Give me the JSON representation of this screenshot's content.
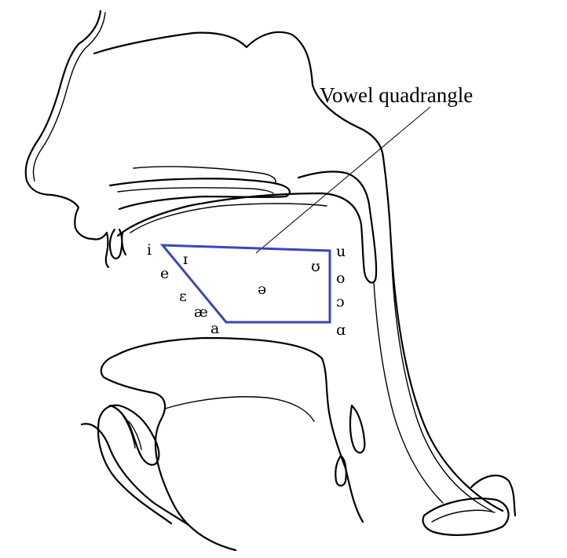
{
  "diagram": {
    "title": "Vowel quadrangle",
    "quadrangle_color": "#3a47b8",
    "vowels": {
      "i": "i",
      "small_i": "ɪ",
      "e": "e",
      "epsilon": "ɛ",
      "ae": "æ",
      "a": "a",
      "u": "u",
      "upsilon": "ʊ",
      "o": "o",
      "open_o": "ɔ",
      "script_a": "ɑ",
      "schwa": "ə"
    }
  }
}
